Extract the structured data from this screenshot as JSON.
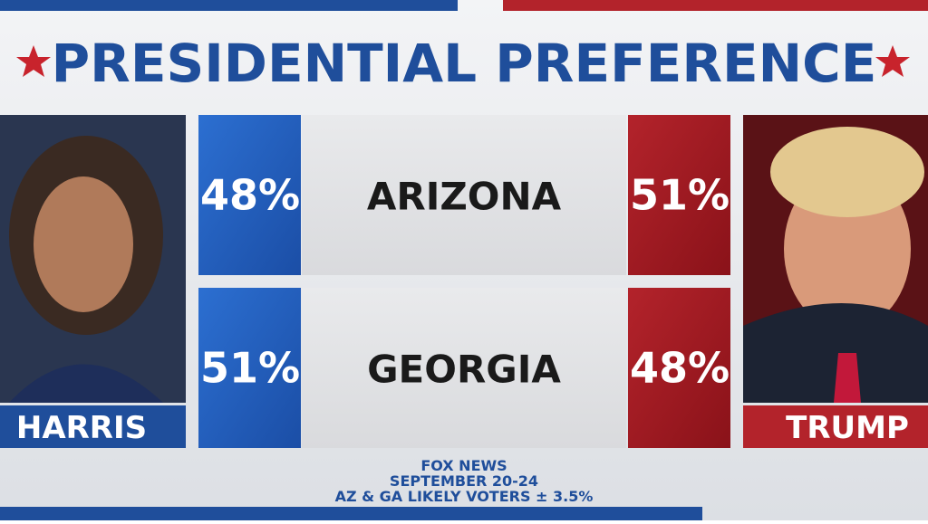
{
  "header": {
    "title": "PRESIDENTIAL PREFERENCE"
  },
  "candidates": {
    "left": "HARRIS",
    "right": "TRUMP"
  },
  "table": {
    "rows": [
      {
        "harris": "48%",
        "state": "ARIZONA",
        "trump": "51%"
      },
      {
        "harris": "51%",
        "state": "GEORGIA",
        "trump": "48%"
      }
    ]
  },
  "footer": {
    "lines": [
      "FOX NEWS",
      "SEPTEMBER 20-24",
      "AZ & GA LIKELY VOTERS ± 3.5%"
    ]
  }
}
